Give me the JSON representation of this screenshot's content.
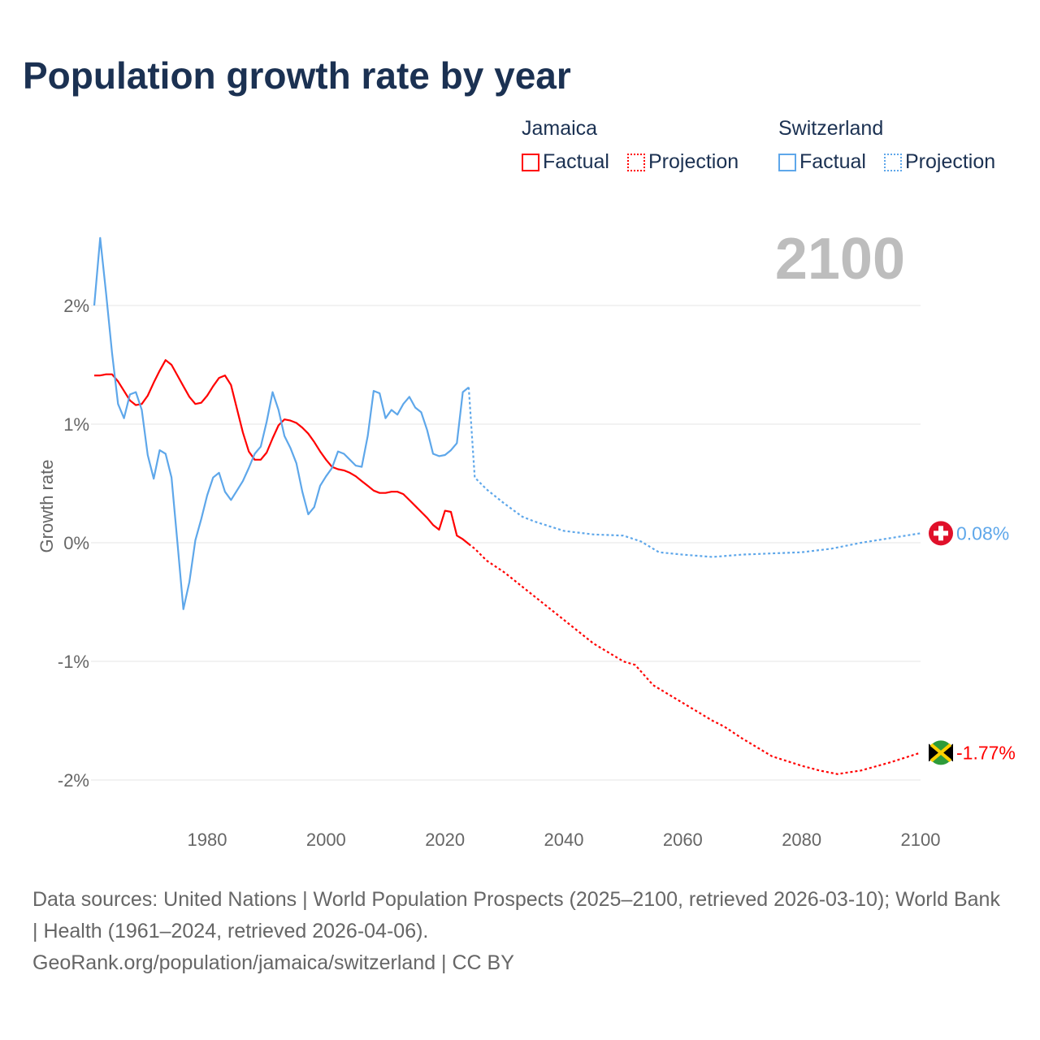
{
  "title": "Population growth rate by year",
  "legend": {
    "groups": [
      {
        "name": "Jamaica",
        "factual": "Factual",
        "projection": "Projection",
        "color": "#ff0000"
      },
      {
        "name": "Switzerland",
        "factual": "Factual",
        "projection": "Projection",
        "color": "#5ea7ea"
      }
    ]
  },
  "current_year": "2100",
  "footer": {
    "sources": "Data sources: United Nations | World Population Prospects (2025–2100, retrieved 2026-03-10); World Bank | Health (1961–2024, retrieved 2026-04-06).",
    "credit": "GeoRank.org/population/jamaica/switzerland | CC BY"
  },
  "chart_data": {
    "type": "line",
    "title": "Population growth rate by year",
    "xlabel": "",
    "ylabel": "Growth rate",
    "xlim": [
      1961,
      2100
    ],
    "ylim": [
      -2.3,
      2.8
    ],
    "x_ticks": [
      1980,
      2000,
      2020,
      2040,
      2060,
      2080,
      2100
    ],
    "y_ticks": [
      {
        "v": 2,
        "label": "2%"
      },
      {
        "v": 1,
        "label": "1%"
      },
      {
        "v": 0,
        "label": "0%"
      },
      {
        "v": -1,
        "label": "-1%"
      },
      {
        "v": -2,
        "label": "-2%"
      }
    ],
    "grid": true,
    "series": [
      {
        "name": "Jamaica",
        "color": "#ff0000",
        "end_label": "-1.77%",
        "flag": "jamaica-flag",
        "factual": {
          "start": 1961,
          "values": [
            1.41,
            1.41,
            1.42,
            1.42,
            1.36,
            1.28,
            1.2,
            1.16,
            1.17,
            1.24,
            1.35,
            1.45,
            1.54,
            1.5,
            1.41,
            1.32,
            1.23,
            1.17,
            1.18,
            1.24,
            1.32,
            1.39,
            1.41,
            1.33,
            1.13,
            0.93,
            0.77,
            0.7,
            0.7,
            0.76,
            0.88,
            0.99,
            1.04,
            1.03,
            1.01,
            0.97,
            0.92,
            0.85,
            0.77,
            0.7,
            0.64,
            0.62,
            0.61,
            0.59,
            0.56,
            0.52,
            0.48,
            0.44,
            0.42,
            0.42,
            0.43,
            0.43,
            0.41,
            0.36,
            0.31,
            0.26,
            0.21,
            0.15,
            0.11,
            0.27,
            0.26,
            0.06,
            0.03,
            -0.01
          ]
        },
        "projection": {
          "x": [
            2024,
            2025,
            2027,
            2030,
            2035,
            2040,
            2045,
            2050,
            2052,
            2055,
            2060,
            2065,
            2067,
            2070,
            2075,
            2080,
            2083,
            2086,
            2090,
            2095,
            2100
          ],
          "values": [
            -0.01,
            -0.05,
            -0.15,
            -0.25,
            -0.45,
            -0.65,
            -0.85,
            -1.0,
            -1.03,
            -1.2,
            -1.35,
            -1.5,
            -1.55,
            -1.65,
            -1.8,
            -1.88,
            -1.92,
            -1.95,
            -1.92,
            -1.85,
            -1.77
          ]
        }
      },
      {
        "name": "Switzerland",
        "color": "#5ea7ea",
        "end_label": "0.08%",
        "flag": "switzerland-flag",
        "factual": {
          "start": 1961,
          "values": [
            2.0,
            2.57,
            2.1,
            1.6,
            1.17,
            1.05,
            1.25,
            1.27,
            1.12,
            0.74,
            0.54,
            0.78,
            0.75,
            0.55,
            0.0,
            -0.56,
            -0.33,
            0.02,
            0.2,
            0.4,
            0.55,
            0.59,
            0.43,
            0.36,
            0.44,
            0.52,
            0.63,
            0.75,
            0.81,
            1.02,
            1.27,
            1.12,
            0.9,
            0.8,
            0.67,
            0.43,
            0.24,
            0.3,
            0.48,
            0.56,
            0.63,
            0.77,
            0.75,
            0.7,
            0.65,
            0.64,
            0.9,
            1.28,
            1.26,
            1.05,
            1.12,
            1.08,
            1.17,
            1.23,
            1.14,
            1.1,
            0.95,
            0.75,
            0.73,
            0.74,
            0.78,
            0.84,
            1.27,
            1.31
          ]
        },
        "projection": {
          "x": [
            2024,
            2025,
            2027,
            2030,
            2033,
            2035,
            2040,
            2045,
            2050,
            2053,
            2056,
            2060,
            2065,
            2070,
            2075,
            2080,
            2085,
            2090,
            2095,
            2100
          ],
          "values": [
            1.31,
            0.55,
            0.45,
            0.33,
            0.22,
            0.18,
            0.1,
            0.07,
            0.06,
            0.01,
            -0.08,
            -0.1,
            -0.12,
            -0.1,
            -0.09,
            -0.08,
            -0.05,
            0.0,
            0.04,
            0.08
          ]
        }
      }
    ]
  }
}
